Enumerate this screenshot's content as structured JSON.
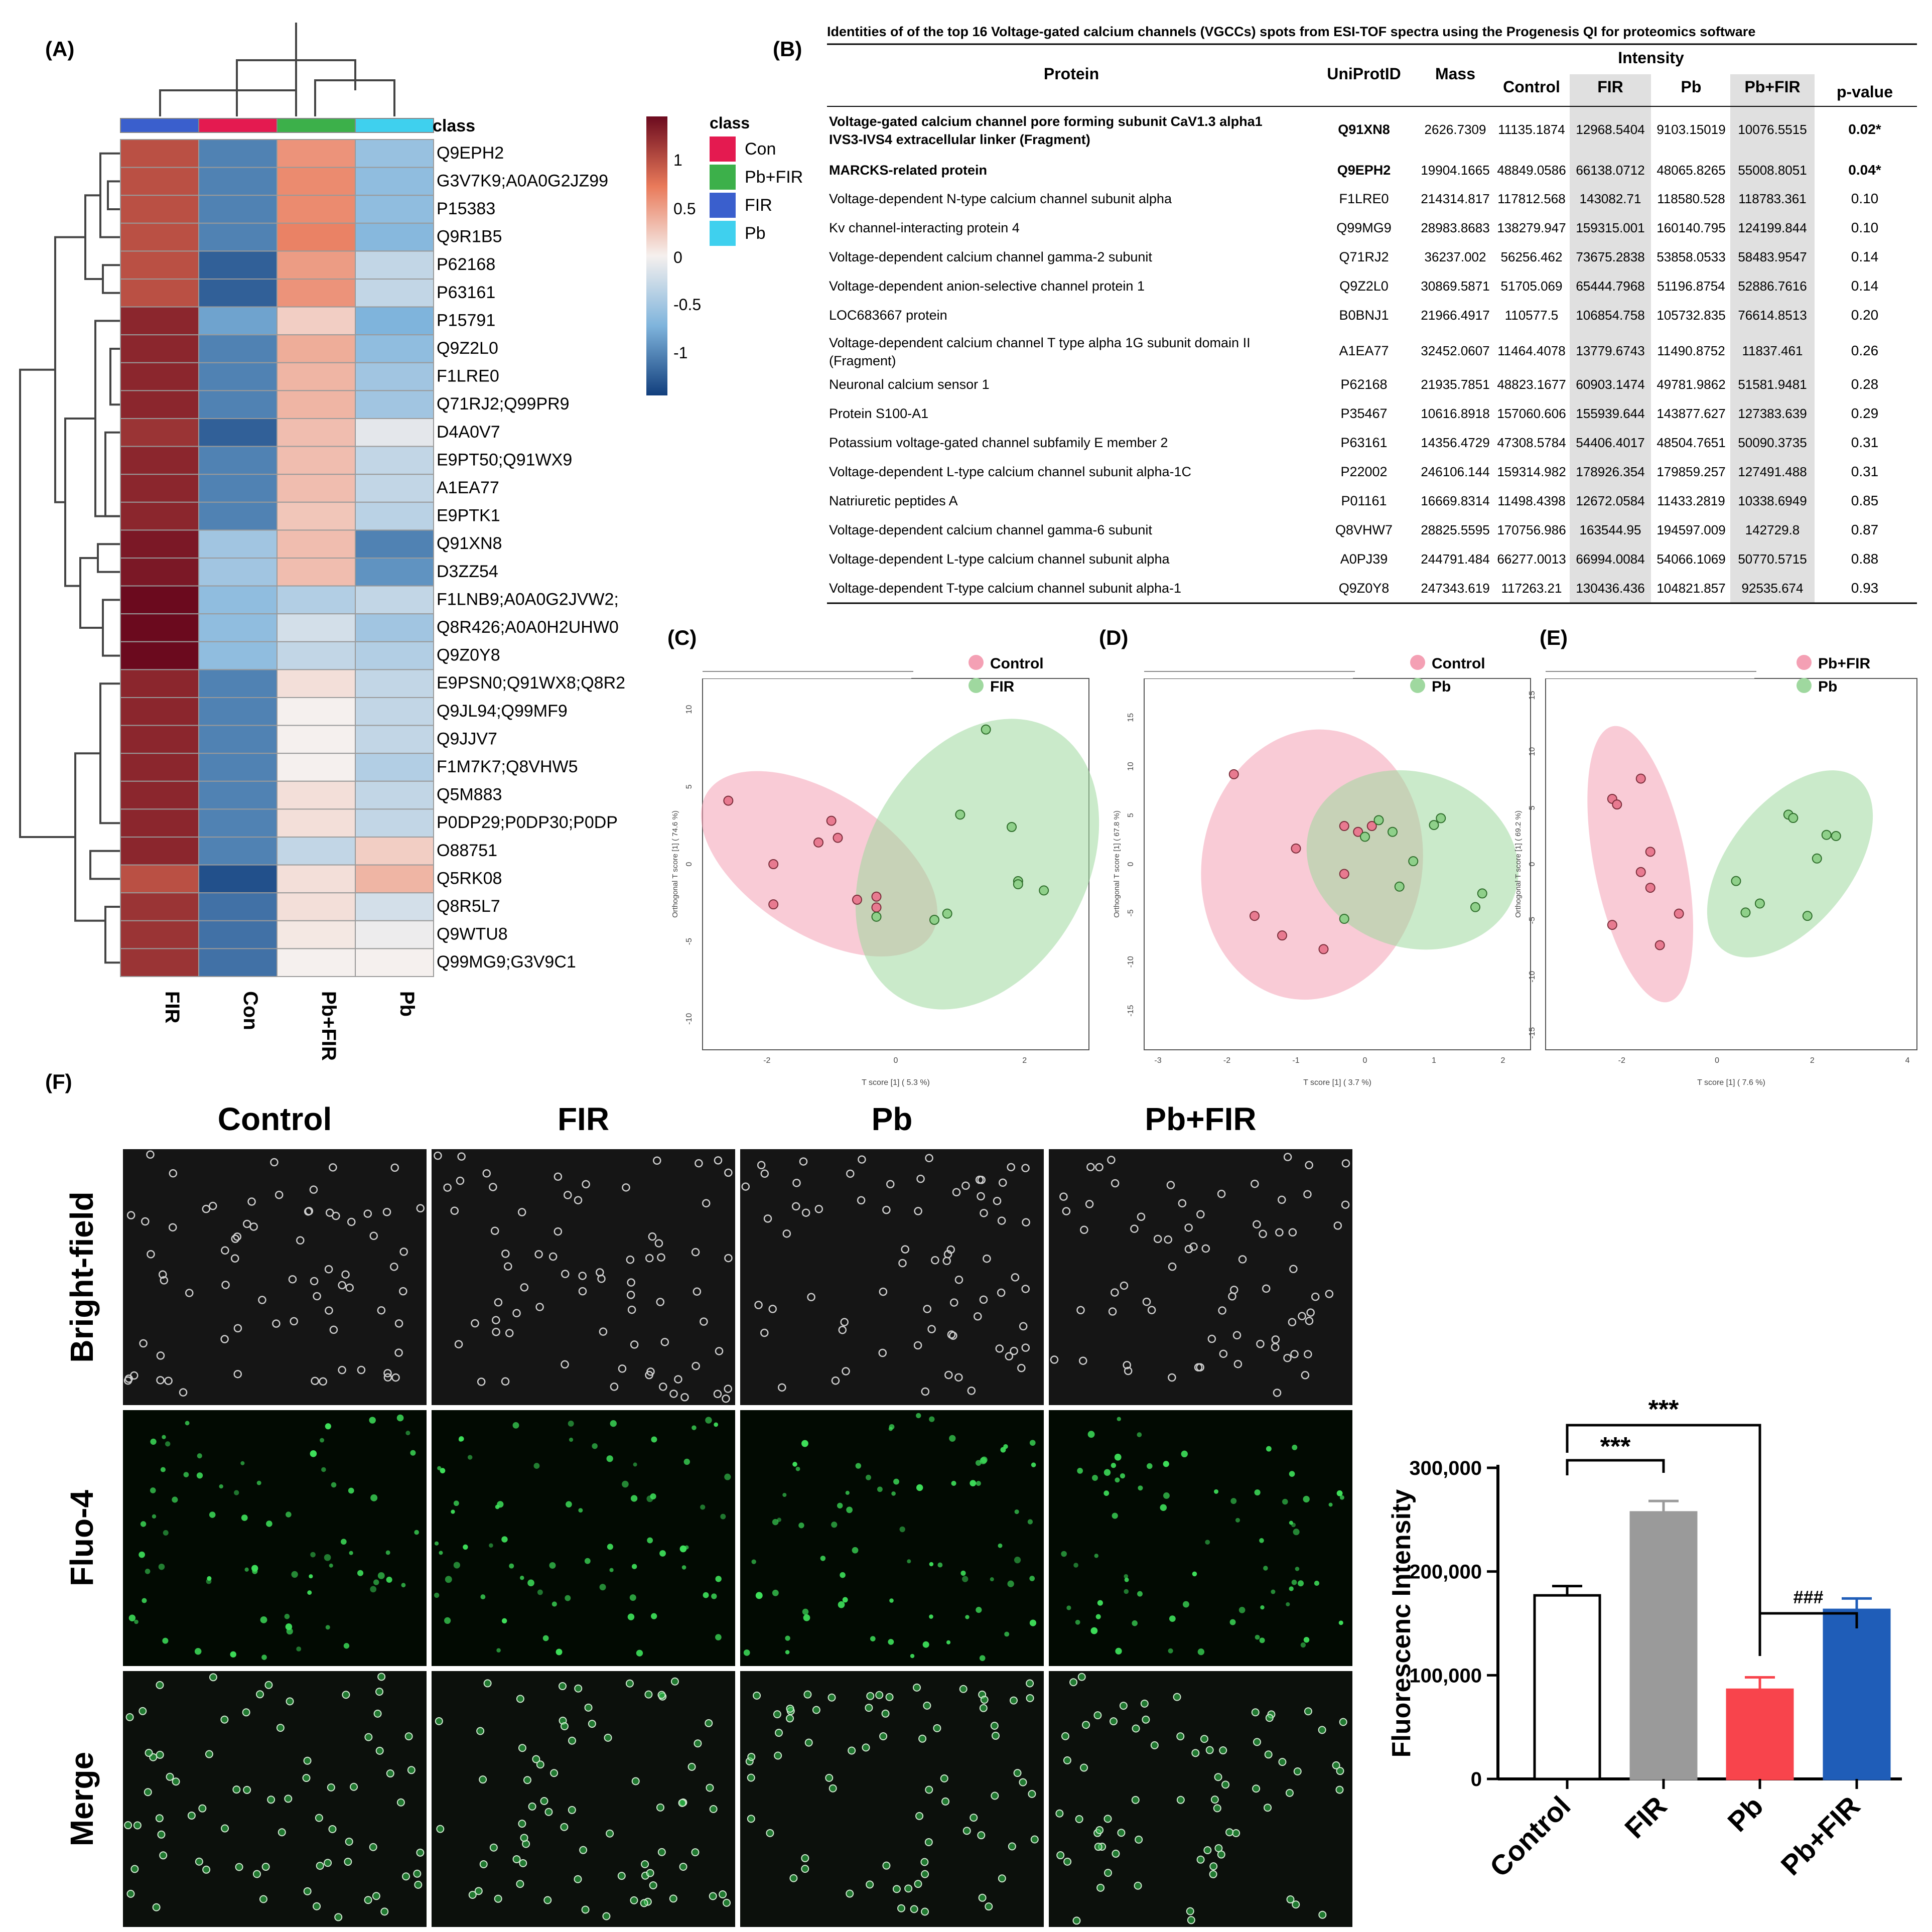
{
  "panels": {
    "A": "(A)",
    "B": "(B)",
    "C": "(C)",
    "D": "(D)",
    "E": "(E)",
    "F": "(F)"
  },
  "colors": {
    "con": "#e41a50",
    "pbfir": "#3cb04a",
    "fir": "#3a5fcd",
    "pb": "#3fd0ee",
    "heat_hi": "#7a0c22",
    "heat_mid": "#f5f0ee",
    "heat_lo": "#1b4f8e",
    "pca_pink": "#f4a0b4",
    "pca_green": "#9fd89f",
    "bar_control": "#ffffff",
    "bar_fir": "#9a9a9a",
    "bar_pb": "#f8444c",
    "bar_pbfir": "#1f5db8"
  },
  "heatmap": {
    "class_label": "class",
    "column_labels": [
      "FIR",
      "Con",
      "Pb+FIR",
      "Pb"
    ],
    "column_classes": [
      "FIR",
      "Con",
      "Pb+FIR",
      "Pb"
    ],
    "legend_title": "class",
    "legend_items": [
      {
        "label": "Con",
        "color": "#e41a50"
      },
      {
        "label": "Pb+FIR",
        "color": "#3cb04a"
      },
      {
        "label": "FIR",
        "color": "#3a5fcd"
      },
      {
        "label": "Pb",
        "color": "#3fd0ee"
      }
    ],
    "scale_ticks": [
      "1",
      "0.5",
      "0",
      "-0.5",
      "-1"
    ],
    "rows": [
      {
        "id": "Q9EPH2",
        "v": [
          1.0,
          -1.0,
          0.55,
          -0.55
        ]
      },
      {
        "id": "G3V7K9;A0A0G2JZ99",
        "v": [
          1.0,
          -1.0,
          0.6,
          -0.6
        ]
      },
      {
        "id": "P15383",
        "v": [
          1.0,
          -1.0,
          0.6,
          -0.6
        ]
      },
      {
        "id": "Q9R1B5",
        "v": [
          1.0,
          -1.0,
          0.65,
          -0.65
        ]
      },
      {
        "id": "P62168",
        "v": [
          1.0,
          -1.2,
          0.5,
          -0.3
        ]
      },
      {
        "id": "P63161",
        "v": [
          1.0,
          -1.2,
          0.55,
          -0.3
        ]
      },
      {
        "id": "P15791",
        "v": [
          1.3,
          -0.8,
          0.2,
          -0.7
        ]
      },
      {
        "id": "Q9Z2L0",
        "v": [
          1.3,
          -1.0,
          0.4,
          -0.6
        ]
      },
      {
        "id": "F1LRE0",
        "v": [
          1.3,
          -1.0,
          0.35,
          -0.5
        ]
      },
      {
        "id": "Q71RJ2;Q99PR9",
        "v": [
          1.3,
          -1.0,
          0.35,
          -0.5
        ]
      },
      {
        "id": "D4A0V7",
        "v": [
          1.2,
          -1.2,
          0.3,
          -0.1
        ]
      },
      {
        "id": "E9PT50;Q91WX9",
        "v": [
          1.3,
          -1.0,
          0.3,
          -0.3
        ]
      },
      {
        "id": "A1EA77",
        "v": [
          1.3,
          -1.0,
          0.3,
          -0.3
        ]
      },
      {
        "id": "E9PTK1",
        "v": [
          1.3,
          -1.0,
          0.25,
          -0.35
        ]
      },
      {
        "id": "Q91XN8",
        "v": [
          1.4,
          -0.5,
          0.3,
          -1.0
        ]
      },
      {
        "id": "D3ZZ54",
        "v": [
          1.4,
          -0.5,
          0.3,
          -0.9
        ]
      },
      {
        "id": "F1LNB9;A0A0G2JVW2;",
        "v": [
          1.5,
          -0.6,
          -0.4,
          -0.3
        ]
      },
      {
        "id": "Q8R426;A0A0H2UHW0",
        "v": [
          1.5,
          -0.6,
          -0.2,
          -0.5
        ]
      },
      {
        "id": "Q9Z0Y8",
        "v": [
          1.5,
          -0.6,
          -0.3,
          -0.4
        ]
      },
      {
        "id": "E9PSN0;Q91WX8;Q8R2",
        "v": [
          1.3,
          -1.0,
          0.1,
          -0.3
        ]
      },
      {
        "id": "Q9JL94;Q99MF9",
        "v": [
          1.3,
          -1.0,
          0.0,
          -0.3
        ]
      },
      {
        "id": "Q9JJV7",
        "v": [
          1.3,
          -1.0,
          0.0,
          -0.3
        ]
      },
      {
        "id": "F1M7K7;Q8VHW5",
        "v": [
          1.3,
          -1.0,
          0.0,
          -0.4
        ]
      },
      {
        "id": "Q5M883",
        "v": [
          1.3,
          -1.0,
          0.1,
          -0.3
        ]
      },
      {
        "id": "P0DP29;P0DP30;P0DP",
        "v": [
          1.3,
          -1.0,
          0.1,
          -0.3
        ]
      },
      {
        "id": "O88751",
        "v": [
          1.3,
          -1.0,
          -0.3,
          0.2
        ]
      },
      {
        "id": "Q5RK08",
        "v": [
          1.0,
          -1.3,
          0.1,
          0.35
        ]
      },
      {
        "id": "Q8R5L7",
        "v": [
          1.2,
          -1.1,
          0.1,
          -0.2
        ]
      },
      {
        "id": "Q9WTU8",
        "v": [
          1.2,
          -1.1,
          0.05,
          -0.05
        ]
      },
      {
        "id": "Q99MG9;G3V9C1",
        "v": [
          1.2,
          -1.1,
          0.0,
          0.0
        ]
      }
    ]
  },
  "table": {
    "title": "Identities of of the top 16 Voltage-gated calcium channels (VGCCs) spots from ESI-TOF spectra using the Progenesis QI for proteomics software",
    "headers": {
      "protein": "Protein",
      "uniprot": "UniProtID",
      "mass": "Mass",
      "intensity": "Intensity",
      "control": "Control",
      "fir": "FIR",
      "pb": "Pb",
      "pbfir": "Pb+FIR",
      "p": "p-value"
    },
    "rows": [
      {
        "protein": [
          "Voltage-gated calcium channel pore forming subunit CaV1.3 alpha1",
          "IVS3-IVS4 extracellular linker (Fragment)"
        ],
        "id": "Q91XN8",
        "mass": "2626.7309",
        "control": "11135.1874",
        "fir": "12968.5404",
        "pb": "9103.15019",
        "pbfir": "10076.5515",
        "p": "0.02*",
        "bold": true
      },
      {
        "protein": [
          "MARCKS-related protein"
        ],
        "id": "Q9EPH2",
        "mass": "19904.1665",
        "control": "48849.0586",
        "fir": "66138.0712",
        "pb": "48065.8265",
        "pbfir": "55008.8051",
        "p": "0.04*",
        "bold": true
      },
      {
        "protein": [
          "Voltage-dependent N-type calcium channel subunit alpha"
        ],
        "id": "F1LRE0",
        "mass": "214314.817",
        "control": "117812.568",
        "fir": "143082.71",
        "pb": "118580.528",
        "pbfir": "118783.361",
        "p": "0.10",
        "bold": false
      },
      {
        "protein": [
          "Kv channel-interacting protein 4"
        ],
        "id": "Q99MG9",
        "mass": "28983.8683",
        "control": "138279.947",
        "fir": "159315.001",
        "pb": "160140.795",
        "pbfir": "124199.844",
        "p": "0.10",
        "bold": false
      },
      {
        "protein": [
          "Voltage-dependent calcium channel gamma-2 subunit"
        ],
        "id": "Q71RJ2",
        "mass": "36237.002",
        "control": "56256.462",
        "fir": "73675.2838",
        "pb": "53858.0533",
        "pbfir": "58483.9547",
        "p": "0.14",
        "bold": false
      },
      {
        "protein": [
          "Voltage-dependent anion-selective channel protein 1"
        ],
        "id": "Q9Z2L0",
        "mass": "30869.5871",
        "control": "51705.069",
        "fir": "65444.7968",
        "pb": "51196.8754",
        "pbfir": "52886.7616",
        "p": "0.14",
        "bold": false
      },
      {
        "protein": [
          "LOC683667 protein"
        ],
        "id": "B0BNJ1",
        "mass": "21966.4917",
        "control": "110577.5",
        "fir": "106854.758",
        "pb": "105732.835",
        "pbfir": "76614.8513",
        "p": "0.20",
        "bold": false
      },
      {
        "protein": [
          "Voltage-dependent calcium channel T type alpha 1G subunit domain II",
          "(Fragment)"
        ],
        "id": "A1EA77",
        "mass": "32452.0607",
        "control": "11464.4078",
        "fir": "13779.6743",
        "pb": "11490.8752",
        "pbfir": "11837.461",
        "p": "0.26",
        "bold": false
      },
      {
        "protein": [
          "Neuronal calcium sensor 1"
        ],
        "id": "P62168",
        "mass": "21935.7851",
        "control": "48823.1677",
        "fir": "60903.1474",
        "pb": "49781.9862",
        "pbfir": "51581.9481",
        "p": "0.28",
        "bold": false
      },
      {
        "protein": [
          "Protein S100-A1"
        ],
        "id": "P35467",
        "mass": "10616.8918",
        "control": "157060.606",
        "fir": "155939.644",
        "pb": "143877.627",
        "pbfir": "127383.639",
        "p": "0.29",
        "bold": false
      },
      {
        "protein": [
          "Potassium voltage-gated channel subfamily E member 2"
        ],
        "id": "P63161",
        "mass": "14356.4729",
        "control": "47308.5784",
        "fir": "54406.4017",
        "pb": "48504.7651",
        "pbfir": "50090.3735",
        "p": "0.31",
        "bold": false
      },
      {
        "protein": [
          "Voltage-dependent L-type calcium channel subunit alpha-1C"
        ],
        "id": "P22002",
        "mass": "246106.144",
        "control": "159314.982",
        "fir": "178926.354",
        "pb": "179859.257",
        "pbfir": "127491.488",
        "p": "0.31",
        "bold": false
      },
      {
        "protein": [
          "Natriuretic peptides A"
        ],
        "id": "P01161",
        "mass": "16669.8314",
        "control": "11498.4398",
        "fir": "12672.0584",
        "pb": "11433.2819",
        "pbfir": "10338.6949",
        "p": "0.85",
        "bold": false
      },
      {
        "protein": [
          "Voltage-dependent calcium channel gamma-6 subunit"
        ],
        "id": "Q8VHW7",
        "mass": "28825.5595",
        "control": "170756.986",
        "fir": "163544.95",
        "pb": "194597.009",
        "pbfir": "142729.8",
        "p": "0.87",
        "bold": false
      },
      {
        "protein": [
          "Voltage-dependent L-type calcium channel subunit alpha"
        ],
        "id": "A0PJ39",
        "mass": "244791.484",
        "control": "66277.0013",
        "fir": "66994.0084",
        "pb": "54066.1069",
        "pbfir": "50770.5715",
        "p": "0.88",
        "bold": false
      },
      {
        "protein": [
          "Voltage-dependent T-type calcium channel subunit alpha-1"
        ],
        "id": "Q9Z0Y8",
        "mass": "247343.619",
        "control": "117263.21",
        "fir": "130436.436",
        "pb": "104821.857",
        "pbfir": "92535.674",
        "p": "0.93",
        "bold": false
      }
    ]
  },
  "scatter": [
    {
      "key": "C",
      "legend": [
        "Control",
        "FIR"
      ],
      "xlabel": "T score [1] ( 5.3 %)",
      "ylabel": "Orthogonal T score [1] ( 74.6 %)",
      "xlim": [
        -3.0,
        3.0
      ],
      "ylim": [
        -12.0,
        12.0
      ],
      "xticks": [
        "-2",
        "0",
        "2"
      ],
      "yticks": [
        "10",
        "5",
        "0",
        "-5",
        "-10"
      ],
      "group1": [
        [
          -2.6,
          4.1
        ],
        [
          -1.9,
          0
        ],
        [
          -1.2,
          1.4
        ],
        [
          -1.0,
          2.8
        ],
        [
          -0.9,
          1.7
        ],
        [
          -0.6,
          -2.3
        ],
        [
          -1.9,
          -2.6
        ],
        [
          -0.3,
          -2.1
        ],
        [
          -0.3,
          -2.8
        ]
      ],
      "group2": [
        [
          -0.3,
          -3.4
        ],
        [
          0.6,
          -3.6
        ],
        [
          0.8,
          -3.2
        ],
        [
          1.0,
          3.2
        ],
        [
          1.4,
          8.7
        ],
        [
          1.8,
          2.4
        ],
        [
          1.9,
          -1.1
        ],
        [
          1.9,
          -1.3
        ],
        [
          2.3,
          -1.7
        ]
      ]
    },
    {
      "key": "D",
      "legend": [
        "Control",
        "Pb"
      ],
      "xlabel": "T score [1] ( 3.7 %)",
      "ylabel": "Orthogonal T score [1] ( 67.8 %)",
      "xlim": [
        -3.2,
        2.4
      ],
      "ylim": [
        -19.0,
        19.0
      ],
      "xticks": [
        "-3",
        "-2",
        "-1",
        "0",
        "1",
        "2"
      ],
      "yticks": [
        "15",
        "10",
        "5",
        "0",
        "-5",
        "-10",
        "-15"
      ],
      "group1": [
        [
          -1.9,
          9.2
        ],
        [
          -1.6,
          -5.3
        ],
        [
          -1.2,
          -7.3
        ],
        [
          -1.0,
          1.6
        ],
        [
          -0.6,
          -8.7
        ],
        [
          -0.3,
          3.9
        ],
        [
          -0.3,
          -1.0
        ],
        [
          -0.1,
          3.3
        ],
        [
          0.1,
          3.9
        ]
      ],
      "group2": [
        [
          0,
          2.8
        ],
        [
          0.2,
          4.5
        ],
        [
          0.4,
          3.3
        ],
        [
          0.5,
          -2.3
        ],
        [
          -0.3,
          -5.6
        ],
        [
          0.7,
          0.3
        ],
        [
          1.0,
          4.0
        ],
        [
          1.1,
          4.7
        ],
        [
          1.6,
          -4.4
        ],
        [
          1.7,
          -3.0
        ]
      ]
    },
    {
      "key": "E",
      "legend": [
        "Pb+FIR",
        "Pb"
      ],
      "xlabel": "T score [1] ( 7.6 %)",
      "ylabel": "Orthogonal T score [1] ( 69.2 %)",
      "xlim": [
        -3.6,
        4.2
      ],
      "ylim": [
        -16.5,
        16.5
      ],
      "xticks": [
        "-2",
        "0",
        "2",
        "4"
      ],
      "yticks": [
        "15",
        "10",
        "5",
        "0",
        "-5",
        "-10",
        "-15"
      ],
      "group1": [
        [
          -2.2,
          5.8
        ],
        [
          -2.1,
          5.3
        ],
        [
          -1.6,
          7.6
        ],
        [
          -1.4,
          1.1
        ],
        [
          -1.6,
          -0.7
        ],
        [
          -1.4,
          -2.1
        ],
        [
          -1.2,
          -7.2
        ],
        [
          -0.8,
          -4.4
        ],
        [
          -2.2,
          -5.4
        ]
      ],
      "group2": [
        [
          0.4,
          -1.5
        ],
        [
          0.6,
          -4.3
        ],
        [
          0.9,
          -3.5
        ],
        [
          1.5,
          4.4
        ],
        [
          1.6,
          4.1
        ],
        [
          1.9,
          -4.6
        ],
        [
          2.1,
          0.5
        ],
        [
          2.3,
          2.6
        ],
        [
          2.5,
          2.5
        ]
      ]
    }
  ],
  "micro": {
    "columns": [
      "Control",
      "FIR",
      "Pb",
      "Pb+FIR"
    ],
    "rows": [
      "Bright-field",
      "Fluo-4",
      "Merge"
    ]
  },
  "chart_data": {
    "type": "bar",
    "title": "",
    "categories": [
      "Control",
      "FIR",
      "Pb",
      "Pb+FIR"
    ],
    "values": [
      177000,
      257000,
      86000,
      163000
    ],
    "errors": [
      9000,
      11000,
      12000,
      11000
    ],
    "ylabel": "Fluorescenc Intensity",
    "ylim": [
      0,
      300000
    ],
    "yticks": [
      "0",
      "100,000",
      "200,000",
      "300,000"
    ],
    "sig_labels": [
      "***",
      "***",
      "###"
    ]
  }
}
